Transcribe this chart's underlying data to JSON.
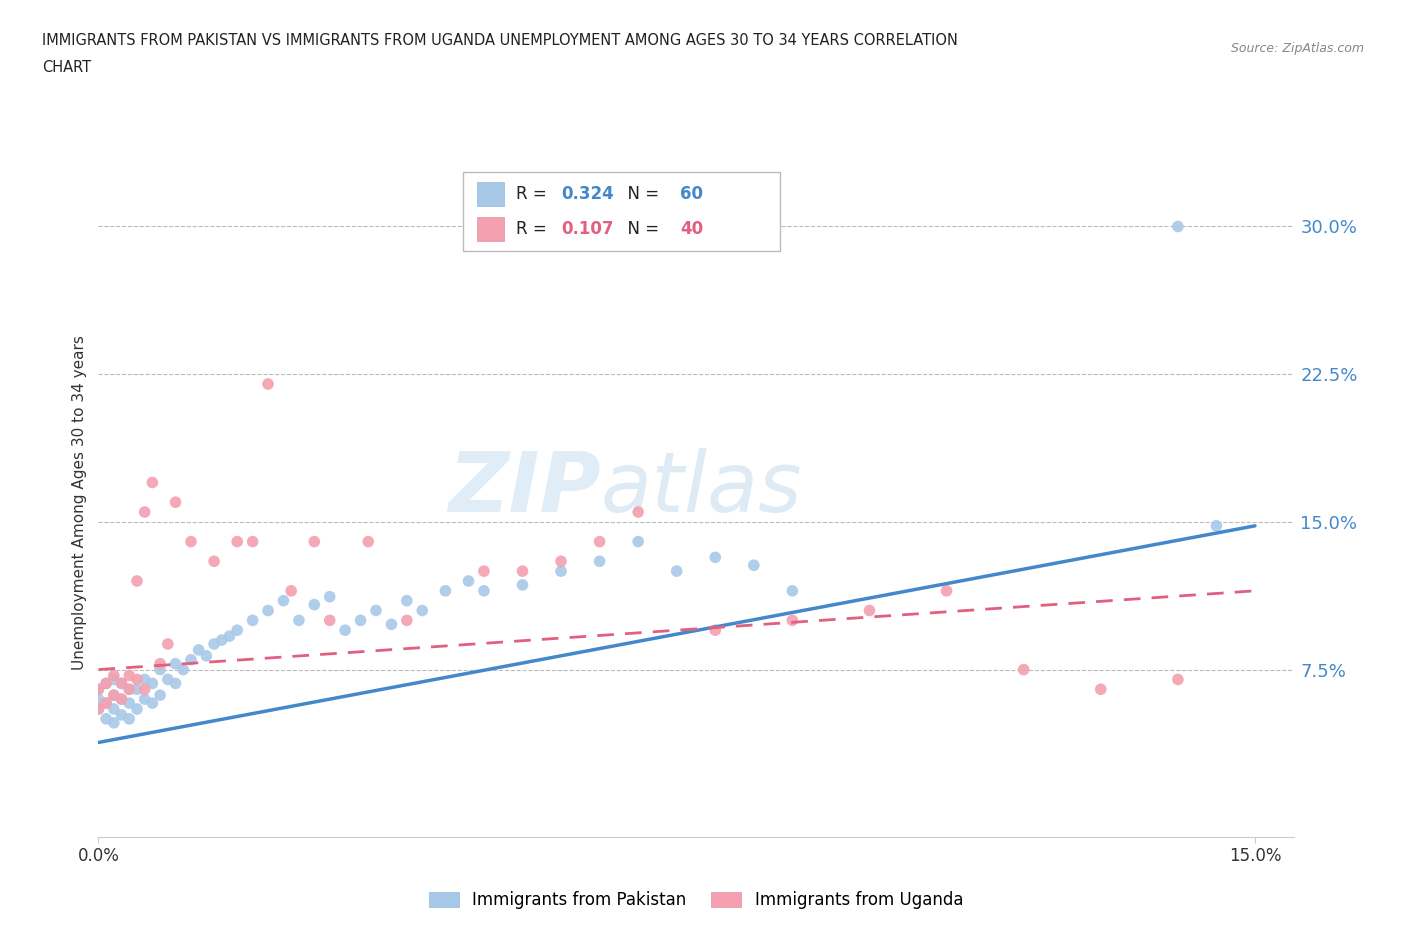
{
  "title_line1": "IMMIGRANTS FROM PAKISTAN VS IMMIGRANTS FROM UGANDA UNEMPLOYMENT AMONG AGES 30 TO 34 YEARS CORRELATION",
  "title_line2": "CHART",
  "source_text": "Source: ZipAtlas.com",
  "ylabel": "Unemployment Among Ages 30 to 34 years",
  "xlim": [
    0.0,
    0.155
  ],
  "ylim": [
    -0.01,
    0.33
  ],
  "xticks": [
    0.0,
    0.15
  ],
  "xticklabels": [
    "0.0%",
    "15.0%"
  ],
  "yticks": [
    0.075,
    0.15,
    0.225,
    0.3
  ],
  "yticklabels": [
    "7.5%",
    "15.0%",
    "22.5%",
    "30.0%"
  ],
  "pakistan_color": "#a8c8e8",
  "uganda_color": "#f4a0b0",
  "pakistan_line_color": "#4488cc",
  "uganda_line_color": "#e06080",
  "R_pakistan": 0.324,
  "N_pakistan": 60,
  "R_uganda": 0.107,
  "N_uganda": 40,
  "watermark_ZIP": "ZIP",
  "watermark_atlas": "atlas",
  "pakistan_x": [
    0.0,
    0.0,
    0.0,
    0.001,
    0.001,
    0.001,
    0.002,
    0.002,
    0.002,
    0.002,
    0.003,
    0.003,
    0.003,
    0.004,
    0.004,
    0.004,
    0.005,
    0.005,
    0.006,
    0.006,
    0.007,
    0.007,
    0.008,
    0.008,
    0.009,
    0.01,
    0.01,
    0.011,
    0.012,
    0.013,
    0.014,
    0.015,
    0.016,
    0.017,
    0.018,
    0.02,
    0.022,
    0.024,
    0.026,
    0.028,
    0.03,
    0.032,
    0.034,
    0.036,
    0.038,
    0.04,
    0.042,
    0.045,
    0.048,
    0.05,
    0.055,
    0.06,
    0.065,
    0.07,
    0.075,
    0.08,
    0.085,
    0.09,
    0.14,
    0.145
  ],
  "pakistan_y": [
    0.055,
    0.06,
    0.065,
    0.05,
    0.058,
    0.068,
    0.048,
    0.055,
    0.062,
    0.07,
    0.052,
    0.06,
    0.068,
    0.05,
    0.058,
    0.065,
    0.055,
    0.065,
    0.06,
    0.07,
    0.058,
    0.068,
    0.062,
    0.075,
    0.07,
    0.068,
    0.078,
    0.075,
    0.08,
    0.085,
    0.082,
    0.088,
    0.09,
    0.092,
    0.095,
    0.1,
    0.105,
    0.11,
    0.1,
    0.108,
    0.112,
    0.095,
    0.1,
    0.105,
    0.098,
    0.11,
    0.105,
    0.115,
    0.12,
    0.115,
    0.118,
    0.125,
    0.13,
    0.14,
    0.125,
    0.132,
    0.128,
    0.115,
    0.3,
    0.148
  ],
  "uganda_x": [
    0.0,
    0.0,
    0.001,
    0.001,
    0.002,
    0.002,
    0.003,
    0.003,
    0.004,
    0.004,
    0.005,
    0.005,
    0.006,
    0.006,
    0.007,
    0.008,
    0.009,
    0.01,
    0.012,
    0.015,
    0.018,
    0.02,
    0.022,
    0.025,
    0.028,
    0.03,
    0.035,
    0.04,
    0.05,
    0.055,
    0.06,
    0.065,
    0.07,
    0.08,
    0.09,
    0.1,
    0.11,
    0.12,
    0.13,
    0.14
  ],
  "uganda_y": [
    0.055,
    0.065,
    0.058,
    0.068,
    0.062,
    0.072,
    0.06,
    0.068,
    0.065,
    0.072,
    0.07,
    0.12,
    0.065,
    0.155,
    0.17,
    0.078,
    0.088,
    0.16,
    0.14,
    0.13,
    0.14,
    0.14,
    0.22,
    0.115,
    0.14,
    0.1,
    0.14,
    0.1,
    0.125,
    0.125,
    0.13,
    0.14,
    0.155,
    0.095,
    0.1,
    0.105,
    0.115,
    0.075,
    0.065,
    0.07
  ],
  "pakistan_trend_x": [
    0.0,
    0.15
  ],
  "pakistan_trend_y": [
    0.038,
    0.148
  ],
  "uganda_trend_x": [
    0.0,
    0.15
  ],
  "uganda_trend_y": [
    0.075,
    0.115
  ]
}
